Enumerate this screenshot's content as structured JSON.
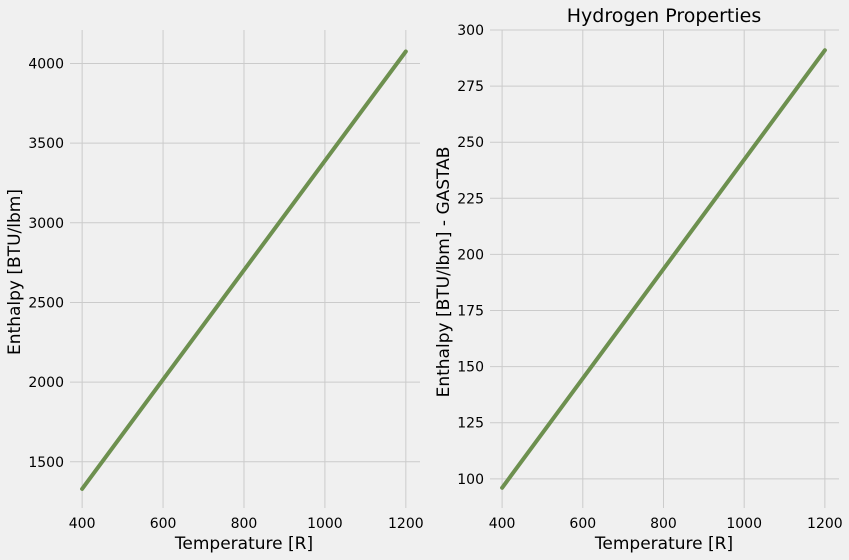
{
  "chart_data": [
    {
      "type": "line",
      "title": "",
      "xlabel": "Temperature [R]",
      "ylabel": "Enthalpy [BTU/lbm]",
      "xlim": [
        370,
        1235
      ],
      "ylim": [
        1210,
        4210
      ],
      "xticks": [
        400,
        600,
        800,
        1000,
        1200
      ],
      "yticks": [
        1500,
        2000,
        2500,
        3000,
        3500,
        4000
      ],
      "grid": true,
      "series": [
        {
          "color": "#6d904f",
          "x": [
            400,
            1200
          ],
          "y": [
            1330,
            4075
          ]
        }
      ]
    },
    {
      "type": "line",
      "title": "Hydrogen Properties",
      "xlabel": "Temperature [R]",
      "ylabel": "Enthalpy [BTU/lbm] - GASTAB",
      "xlim": [
        370,
        1235
      ],
      "ylim": [
        87,
        300
      ],
      "xticks": [
        400,
        600,
        800,
        1000,
        1200
      ],
      "yticks": [
        100,
        125,
        150,
        175,
        200,
        225,
        250,
        275,
        300
      ],
      "grid": true,
      "series": [
        {
          "color": "#6d904f",
          "x": [
            400,
            1200
          ],
          "y": [
            96,
            291
          ]
        }
      ]
    }
  ]
}
